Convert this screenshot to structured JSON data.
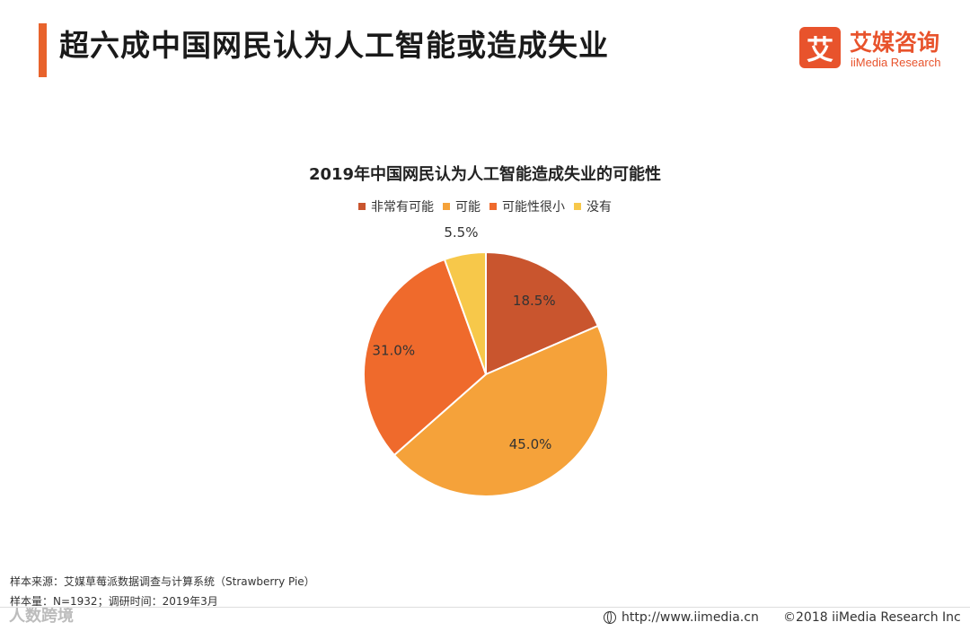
{
  "header": {
    "title": "超六成中国网民认为人工智能或造成失业",
    "logo_mark": "艾",
    "logo_cn": "艾媒咨询",
    "logo_en": "iiMedia Research"
  },
  "colors": {
    "accent": "#e8632c",
    "slice_1": "#c9552e",
    "slice_2": "#f5a23a",
    "slice_3": "#ef6a2c",
    "slice_4": "#f7c84a"
  },
  "chart_data": {
    "type": "pie",
    "title": "2019年中国网民认为人工智能造成失业的可能性",
    "categories": [
      "非常有可能",
      "可能",
      "可能性很小",
      "没有"
    ],
    "values": [
      18.5,
      45.0,
      31.0,
      5.5
    ],
    "value_labels": [
      "18.5%",
      "45.0%",
      "31.0%",
      "5.5%"
    ],
    "legend_position": "top"
  },
  "footnotes": {
    "source": "样本来源：艾媒草莓派数据调查与计算系统（Strawberry Pie）",
    "sample": "样本量：N=1932；调研时间：2019年3月"
  },
  "footer": {
    "url": "http://www.iimedia.cn",
    "copyright": "©2018  iiMedia Research  Inc"
  },
  "watermark": "人数跨境"
}
